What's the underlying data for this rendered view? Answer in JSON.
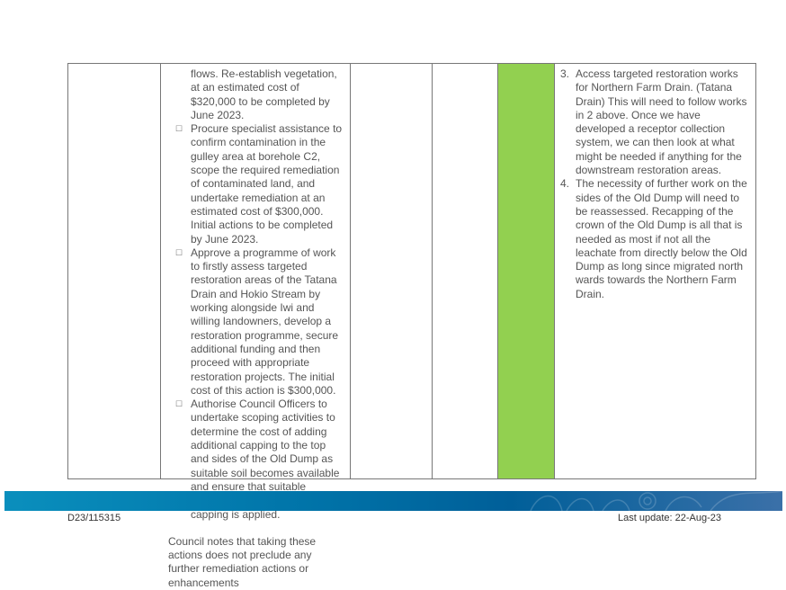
{
  "table": {
    "left_cell": {
      "continuation": "flows. Re-establish vegetation, at an estimated cost of $320,000 to be completed by June 2023.",
      "bullets": [
        "Procure specialist assistance to confirm contamination in the gulley area at borehole C2, scope the required remediation of contaminated land, and undertake remediation at an estimated cost of $300,000. Initial actions to be completed by June 2023.",
        "Approve a programme of work to firstly assess targeted restoration areas of the Tatana Drain and Hokio Stream by working alongside Iwi and willing landowners, develop a restoration programme, secure additional funding and then proceed with appropriate restoration projects. The initial cost of this action is $300,000.",
        "Authorise Council Officers to undertake scoping activities to determine the cost of adding additional capping to the top and sides of the Old Dump as suitable soil becomes available and ensure that suitable drainage is constructed as capping is applied."
      ],
      "note": "Council notes that taking these actions does not preclude any further remediation actions or enhancements"
    },
    "status_color": "#92d050",
    "right_cell": {
      "items": [
        {
          "num": "3.",
          "text": "Access targeted restoration works for Northern Farm Drain. (Tatana Drain) This will need to follow works in 2 above. Once we have developed a receptor collection system, we can then look at what might be needed if anything for the downstream restoration areas."
        },
        {
          "num": "4.",
          "text": "The necessity of further work on the sides of the Old Dump will need to be reassessed. Recapping of the crown of the Old Dump is all that is needed as most if not all the leachate from directly below the Old Dump as long since migrated north wards towards the Northern Farm Drain."
        }
      ]
    }
  },
  "footer": {
    "doc_id": "D23/115315",
    "last_update": "Last update: 22-Aug-23",
    "band_color": "#0073a8"
  }
}
